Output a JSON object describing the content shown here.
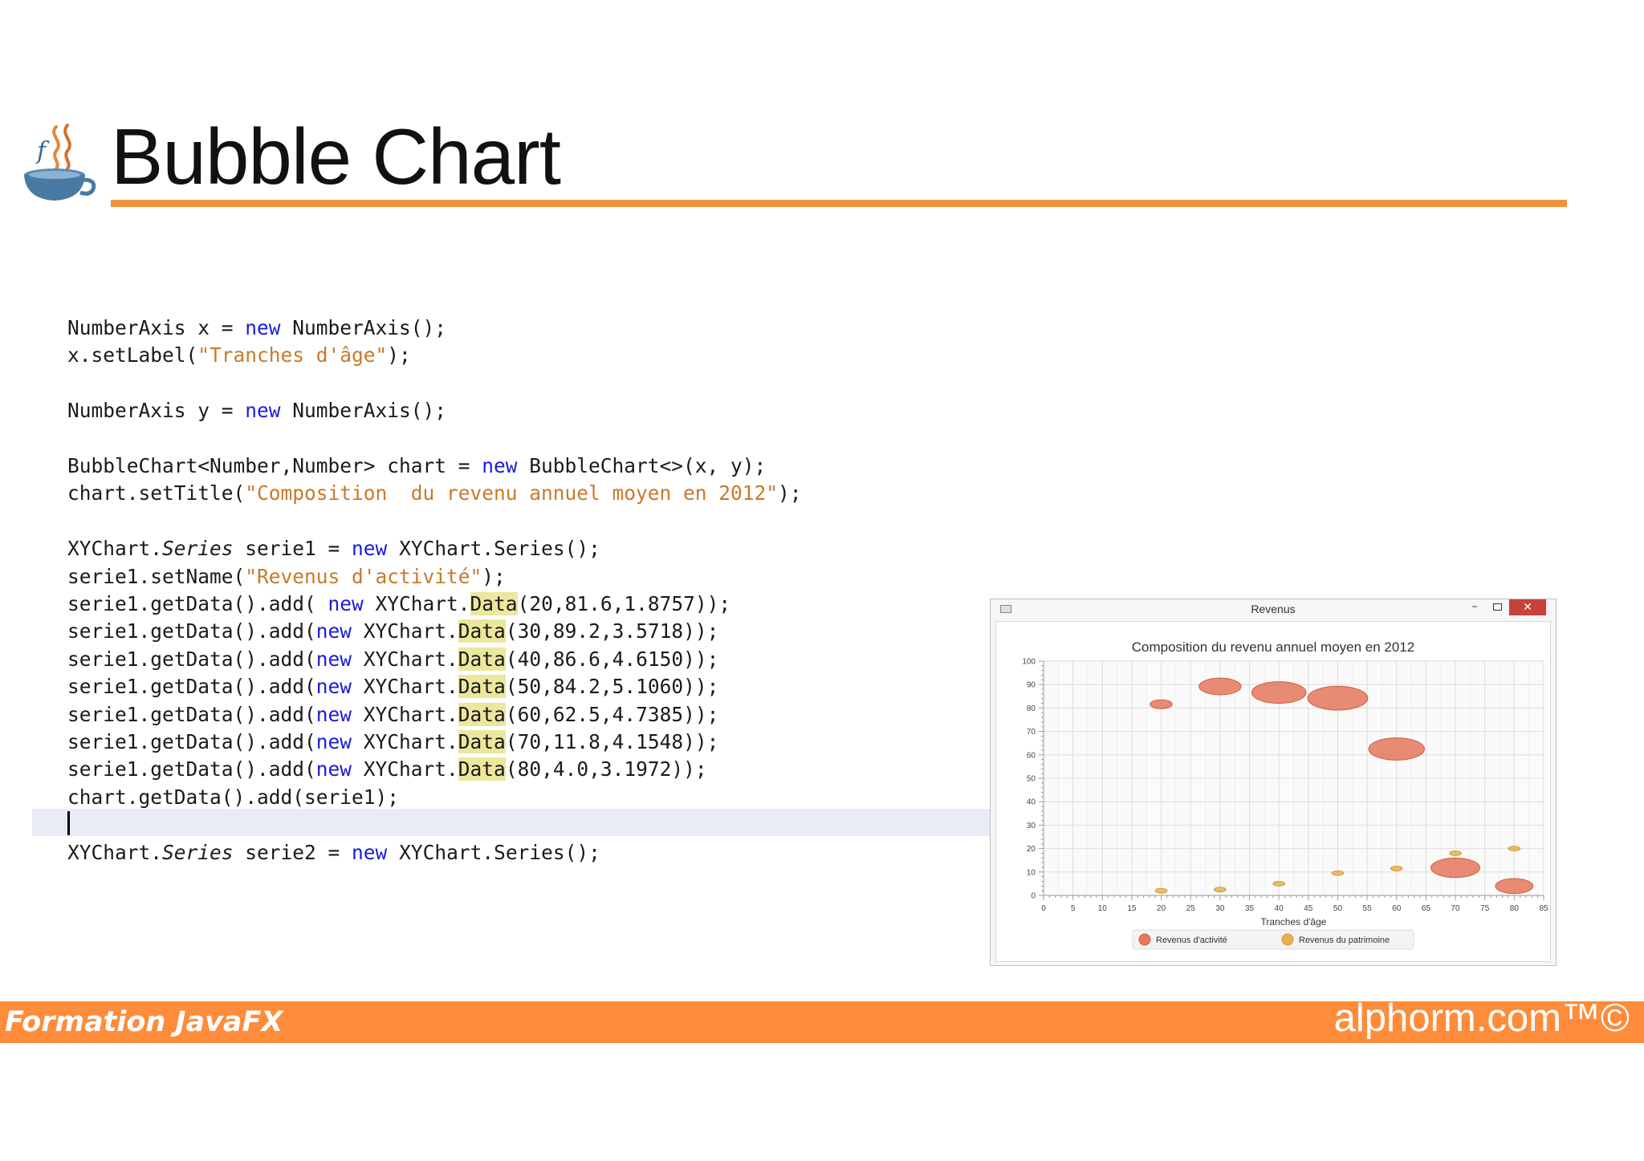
{
  "slide": {
    "title": "Bubble Chart",
    "footer_left": "Formation JavaFX",
    "footer_right": "alphorm.com™©"
  },
  "code": {
    "lines": [
      [
        {
          "t": "NumberAxis x = "
        },
        {
          "t": "new",
          "c": "kw"
        },
        {
          "t": " NumberAxis();"
        }
      ],
      [
        {
          "t": "x.setLabel("
        },
        {
          "t": "\"Tranches d'âge\"",
          "c": "str"
        },
        {
          "t": ");"
        }
      ],
      [],
      [
        {
          "t": "NumberAxis y = "
        },
        {
          "t": "new",
          "c": "kw"
        },
        {
          "t": " NumberAxis();"
        }
      ],
      [],
      [
        {
          "t": "BubbleChart<Number,Number> chart = "
        },
        {
          "t": "new",
          "c": "kw"
        },
        {
          "t": " BubbleChart<>(x, y);"
        }
      ],
      [
        {
          "t": "chart.setTitle("
        },
        {
          "t": "\"Composition  du revenu annuel moyen en 2012\"",
          "c": "str"
        },
        {
          "t": ");"
        }
      ],
      [],
      [
        {
          "t": "XYChart."
        },
        {
          "t": "Series",
          "c": "it"
        },
        {
          "t": " serie1 = "
        },
        {
          "t": "new",
          "c": "kw"
        },
        {
          "t": " XYChart.Series();"
        }
      ],
      [
        {
          "t": "serie1.setName("
        },
        {
          "t": "\"Revenus d'activité\"",
          "c": "str"
        },
        {
          "t": ");"
        }
      ],
      [
        {
          "t": "serie1.getData().add( "
        },
        {
          "t": "new",
          "c": "kw"
        },
        {
          "t": " XYChart."
        },
        {
          "t": "Data",
          "c": "hl"
        },
        {
          "t": "(20,81.6,1.8757));"
        }
      ],
      [
        {
          "t": "serie1.getData().add("
        },
        {
          "t": "new",
          "c": "kw"
        },
        {
          "t": " XYChart."
        },
        {
          "t": "Data",
          "c": "hl"
        },
        {
          "t": "(30,89.2,3.5718));"
        }
      ],
      [
        {
          "t": "serie1.getData().add("
        },
        {
          "t": "new",
          "c": "kw"
        },
        {
          "t": " XYChart."
        },
        {
          "t": "Data",
          "c": "hl"
        },
        {
          "t": "(40,86.6,4.6150));"
        }
      ],
      [
        {
          "t": "serie1.getData().add("
        },
        {
          "t": "new",
          "c": "kw"
        },
        {
          "t": " XYChart."
        },
        {
          "t": "Data",
          "c": "hl"
        },
        {
          "t": "(50,84.2,5.1060));"
        }
      ],
      [
        {
          "t": "serie1.getData().add("
        },
        {
          "t": "new",
          "c": "kw"
        },
        {
          "t": " XYChart."
        },
        {
          "t": "Data",
          "c": "hl"
        },
        {
          "t": "(60,62.5,4.7385));"
        }
      ],
      [
        {
          "t": "serie1.getData().add("
        },
        {
          "t": "new",
          "c": "kw"
        },
        {
          "t": " XYChart."
        },
        {
          "t": "Data",
          "c": "hl"
        },
        {
          "t": "(70,11.8,4.1548));"
        }
      ],
      [
        {
          "t": "serie1.getData().add("
        },
        {
          "t": "new",
          "c": "kw"
        },
        {
          "t": " XYChart."
        },
        {
          "t": "Data",
          "c": "hl"
        },
        {
          "t": "(80,4.0,3.1972));"
        }
      ],
      [
        {
          "t": "chart.getData().add(serie1);"
        }
      ],
      [],
      [
        {
          "t": "XYChart."
        },
        {
          "t": "Series",
          "c": "it"
        },
        {
          "t": " serie2 = "
        },
        {
          "t": "new",
          "c": "kw"
        },
        {
          "t": " XYChart.Series();"
        }
      ]
    ]
  },
  "chart_window": {
    "title": "Revenus",
    "minimize_label": "–",
    "close_label": "✕",
    "app_icon": "window-app-icon"
  },
  "chart_data": {
    "type": "bubble",
    "title": "Composition  du revenu annuel moyen en 2012",
    "xlabel": "Tranches d'âge",
    "ylabel": "",
    "xlim": [
      0,
      85
    ],
    "ylim": [
      0,
      100
    ],
    "x_ticks": [
      0,
      5,
      10,
      15,
      20,
      25,
      30,
      35,
      40,
      45,
      50,
      55,
      60,
      65,
      70,
      75,
      80,
      85
    ],
    "y_ticks": [
      0,
      10,
      20,
      30,
      40,
      50,
      60,
      70,
      80,
      90,
      100
    ],
    "grid": true,
    "legend_position": "bottom",
    "series": [
      {
        "name": "Revenus d'activité",
        "color": "#e4775c",
        "points": [
          {
            "x": 20,
            "y": 81.6,
            "r": 1.8757
          },
          {
            "x": 30,
            "y": 89.2,
            "r": 3.5718
          },
          {
            "x": 40,
            "y": 86.6,
            "r": 4.615
          },
          {
            "x": 50,
            "y": 84.2,
            "r": 5.106
          },
          {
            "x": 60,
            "y": 62.5,
            "r": 4.7385
          },
          {
            "x": 70,
            "y": 11.8,
            "r": 4.1548
          },
          {
            "x": 80,
            "y": 4.0,
            "r": 3.1972
          }
        ]
      },
      {
        "name": "Revenus du patrimoine",
        "color": "#e8b04e",
        "points": [
          {
            "x": 20,
            "y": 2,
            "r": 1
          },
          {
            "x": 30,
            "y": 2.5,
            "r": 1
          },
          {
            "x": 40,
            "y": 5,
            "r": 1
          },
          {
            "x": 50,
            "y": 9.5,
            "r": 1
          },
          {
            "x": 60,
            "y": 11.5,
            "r": 1
          },
          {
            "x": 70,
            "y": 18,
            "r": 1
          },
          {
            "x": 80,
            "y": 20,
            "r": 1
          }
        ]
      }
    ]
  }
}
